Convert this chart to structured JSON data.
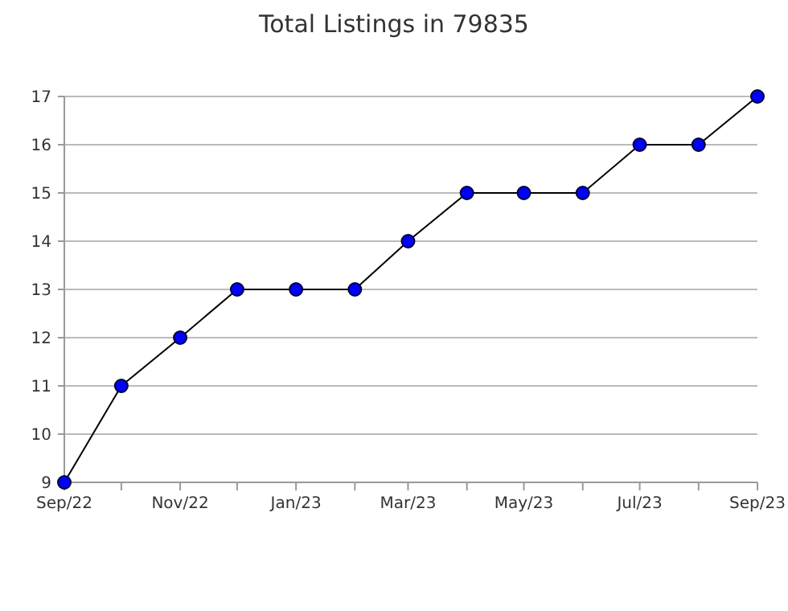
{
  "chart_data": {
    "type": "line",
    "title": "Total Listings in 79835",
    "x": [
      "2022-09",
      "2022-10",
      "2022-11",
      "2022-12",
      "2023-01",
      "2023-02",
      "2023-03",
      "2023-04",
      "2023-05",
      "2023-06",
      "2023-07",
      "2023-08",
      "2023-09"
    ],
    "series": [
      {
        "color": "#0000ff",
        "values": [
          9,
          11,
          12,
          13,
          13,
          13,
          14,
          15,
          15,
          15,
          16,
          16,
          17
        ]
      }
    ],
    "xlim": [
      "2022-09",
      "2023-09"
    ],
    "xticks": [
      {
        "value": "2022-09",
        "label": "Sep/22"
      },
      {
        "value": "2022-10",
        "label": null
      },
      {
        "value": "2022-11",
        "label": "Nov/22"
      },
      {
        "value": "2022-12",
        "label": null
      },
      {
        "value": "2023-01",
        "label": "Jan/23"
      },
      {
        "value": "2023-02",
        "label": null
      },
      {
        "value": "2023-03",
        "label": "Mar/23"
      },
      {
        "value": "2023-04",
        "label": null
      },
      {
        "value": "2023-05",
        "label": "May/23"
      },
      {
        "value": "2023-06",
        "label": null
      },
      {
        "value": "2023-07",
        "label": "Jul/23"
      },
      {
        "value": "2023-08",
        "label": null
      },
      {
        "value": "2023-09",
        "label": "Sep/23"
      }
    ],
    "ylim": [
      9,
      17
    ],
    "yticks": [
      9,
      10,
      11,
      12,
      13,
      14,
      15,
      16,
      17
    ],
    "grid": "y",
    "marker": "circle",
    "line_style": "solid"
  }
}
